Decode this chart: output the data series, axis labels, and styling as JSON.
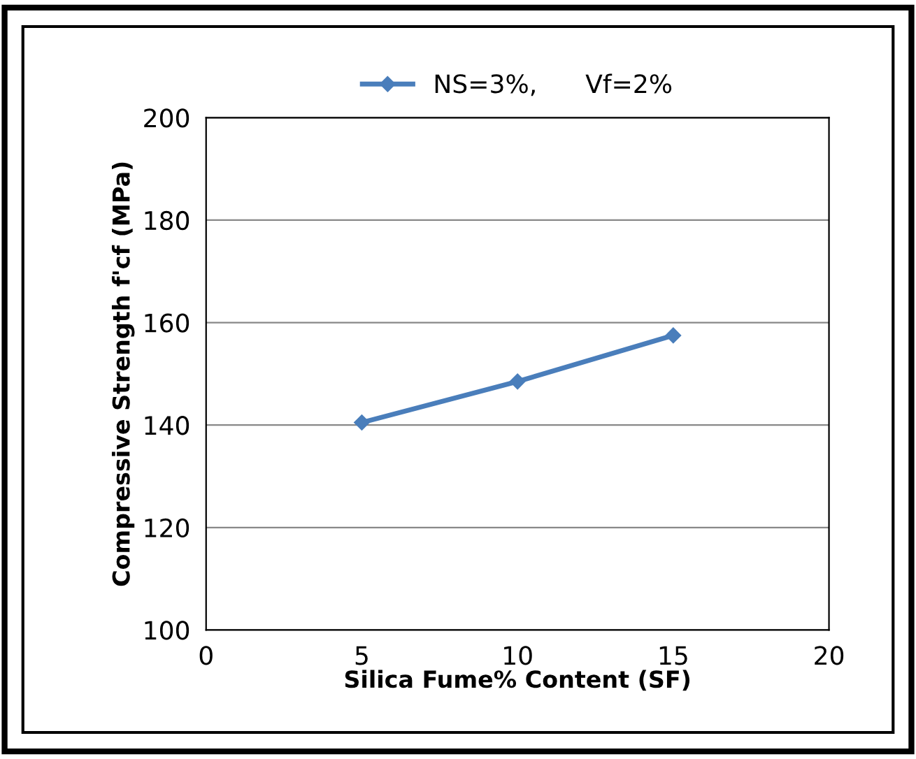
{
  "chart_data": {
    "type": "line",
    "xlabel": "Silica Fume% Content (SF)",
    "ylabel": "Compressive Strength f'cf (MPa)",
    "x": [
      5,
      10,
      15
    ],
    "series": [
      {
        "name": "NS=3%,      Vf=2%",
        "color": "#4a7ebb",
        "values": [
          140.5,
          148.5,
          157.5
        ]
      }
    ],
    "xlim": [
      0,
      20
    ],
    "xticks": [
      0,
      5,
      10,
      15,
      20
    ],
    "ylim": [
      100,
      200
    ],
    "yticks": [
      100,
      120,
      140,
      160,
      180,
      200
    ],
    "grid": "y",
    "legend": "top",
    "marker": "diamond",
    "line_style": "solid"
  }
}
